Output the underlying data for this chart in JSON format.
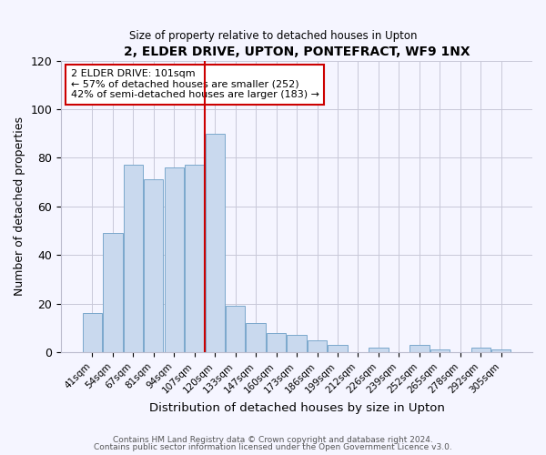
{
  "title": "2, ELDER DRIVE, UPTON, PONTEFRACT, WF9 1NX",
  "subtitle": "Size of property relative to detached houses in Upton",
  "xlabel": "Distribution of detached houses by size in Upton",
  "ylabel": "Number of detached properties",
  "footer_line1": "Contains HM Land Registry data © Crown copyright and database right 2024.",
  "footer_line2": "Contains public sector information licensed under the Open Government Licence v3.0.",
  "bar_labels": [
    "41sqm",
    "54sqm",
    "67sqm",
    "81sqm",
    "94sqm",
    "107sqm",
    "120sqm",
    "133sqm",
    "147sqm",
    "160sqm",
    "173sqm",
    "186sqm",
    "199sqm",
    "212sqm",
    "226sqm",
    "239sqm",
    "252sqm",
    "265sqm",
    "278sqm",
    "292sqm",
    "305sqm"
  ],
  "bar_values": [
    16,
    49,
    77,
    71,
    76,
    77,
    90,
    19,
    12,
    8,
    7,
    5,
    3,
    0,
    2,
    0,
    3,
    1,
    0,
    2,
    1
  ],
  "bar_color": "#c9d9ee",
  "bar_edge_color": "#7aa8cc",
  "ylim": [
    0,
    120
  ],
  "yticks": [
    0,
    20,
    40,
    60,
    80,
    100,
    120
  ],
  "vline_x": 5.5,
  "vline_color": "#cc0000",
  "annotation_text": "2 ELDER DRIVE: 101sqm\n← 57% of detached houses are smaller (252)\n42% of semi-detached houses are larger (183) →",
  "background_color": "#f5f5ff",
  "grid_color": "#c8c8d8"
}
